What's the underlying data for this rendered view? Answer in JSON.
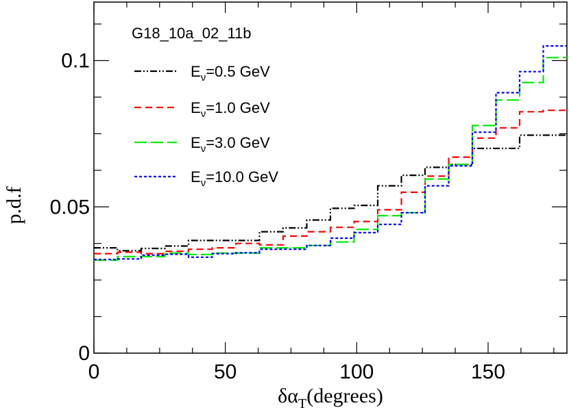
{
  "chart_data": {
    "type": "step",
    "legend_title": "G18_10a_02_11b",
    "xlabel_main": "δα",
    "xlabel_sub": "T",
    "xlabel_rest": "(degrees)",
    "ylabel": "p.d.f",
    "xlim": [
      0,
      180
    ],
    "ylim": [
      0,
      0.12
    ],
    "x_ticks": [
      "0",
      "50",
      "100",
      "150"
    ],
    "y_ticks": [
      "0",
      "0.05",
      "0.1"
    ],
    "bin_edges": [
      0,
      9,
      18,
      27,
      36,
      45,
      54,
      63,
      72,
      81,
      90,
      99,
      108,
      117,
      126,
      135,
      144,
      153,
      162,
      171,
      180
    ],
    "series": [
      {
        "name": "Eν=0.5 GeV",
        "legend_main": "E",
        "legend_sub": "ν",
        "legend_rest": "=0.5 GeV",
        "color": "#000000",
        "dash": "10,3,2,3,2,3",
        "values": [
          0.036,
          0.035,
          0.0358,
          0.0366,
          0.0385,
          0.0385,
          0.0385,
          0.0415,
          0.0428,
          0.0455,
          0.0495,
          0.0505,
          0.0572,
          0.0608,
          0.0635,
          0.0645,
          0.07,
          0.07,
          0.0745,
          0.0745
        ]
      },
      {
        "name": "Eν=1.0 GeV",
        "legend_main": "E",
        "legend_sub": "ν",
        "legend_rest": "=1.0 GeV",
        "color": "#ff0000",
        "dash": "10,6",
        "values": [
          0.034,
          0.0345,
          0.034,
          0.0348,
          0.0355,
          0.036,
          0.0375,
          0.037,
          0.04,
          0.0415,
          0.043,
          0.045,
          0.049,
          0.055,
          0.0605,
          0.067,
          0.0735,
          0.077,
          0.0825,
          0.083
        ]
      },
      {
        "name": "Eν=3.0 GeV",
        "legend_main": "E",
        "legend_sub": "ν",
        "legend_rest": "=3.0 GeV",
        "color": "#00ee00",
        "dash": "18,6",
        "values": [
          0.0318,
          0.033,
          0.033,
          0.0342,
          0.0337,
          0.0342,
          0.0342,
          0.036,
          0.036,
          0.0368,
          0.038,
          0.0423,
          0.047,
          0.048,
          0.0595,
          0.0645,
          0.0778,
          0.0865,
          0.0925,
          0.101
        ]
      },
      {
        "name": "Eν=10.0 GeV",
        "legend_main": "E",
        "legend_sub": "ν",
        "legend_rest": "=10.0 GeV",
        "color": "#0000ff",
        "dash": "4,3",
        "values": [
          0.032,
          0.0322,
          0.0335,
          0.0338,
          0.0328,
          0.034,
          0.0343,
          0.0355,
          0.0355,
          0.0368,
          0.0393,
          0.0412,
          0.044,
          0.048,
          0.0572,
          0.064,
          0.0755,
          0.089,
          0.0962,
          0.105
        ]
      }
    ]
  }
}
